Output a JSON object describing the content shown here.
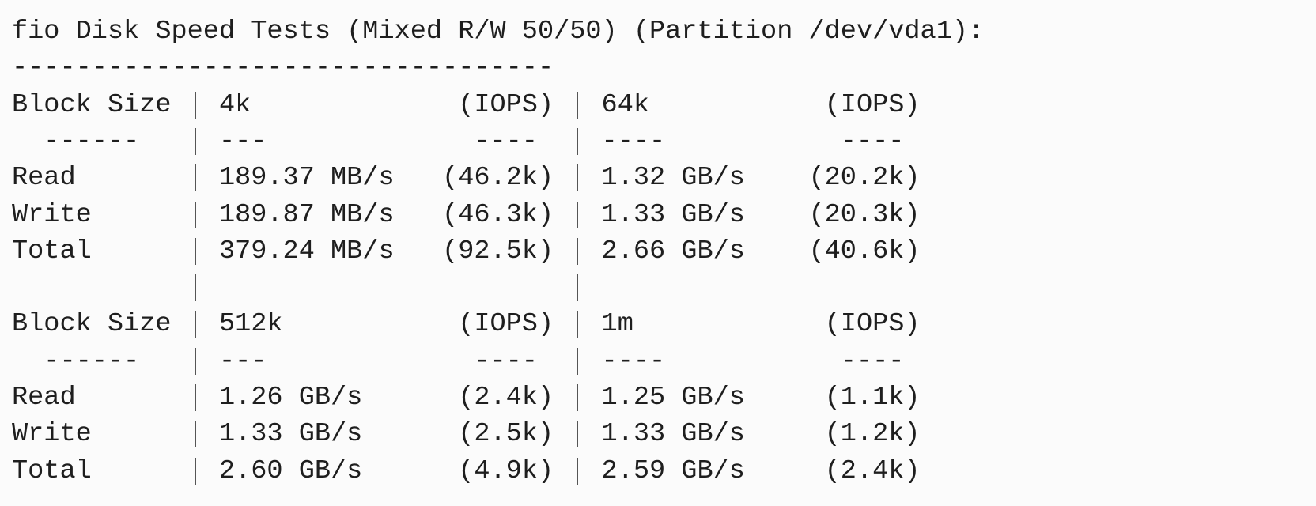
{
  "title": "fio Disk Speed Tests (Mixed R/W 50/50) (Partition /dev/vda1):",
  "separator": "----------------------------------",
  "tables": [
    {
      "header": [
        "Block Size",
        "4k",
        "(IOPS)",
        "64k",
        "(IOPS)"
      ],
      "dashes": [
        "------",
        "---",
        "----",
        "----",
        "----"
      ],
      "rows": [
        [
          "Read",
          "189.37 MB/s",
          "(46.2k)",
          "1.32 GB/s",
          "(20.2k)"
        ],
        [
          "Write",
          "189.87 MB/s",
          "(46.3k)",
          "1.33 GB/s",
          "(20.3k)"
        ],
        [
          "Total",
          "379.24 MB/s",
          "(92.5k)",
          "2.66 GB/s",
          "(40.6k)"
        ]
      ]
    },
    {
      "header": [
        "Block Size",
        "512k",
        "(IOPS)",
        "1m",
        "(IOPS)"
      ],
      "dashes": [
        "------",
        "---",
        "----",
        "----",
        "----"
      ],
      "rows": [
        [
          "Read",
          "1.26 GB/s",
          "(2.4k)",
          "1.25 GB/s",
          "(1.1k)"
        ],
        [
          "Write",
          "1.33 GB/s",
          "(2.5k)",
          "1.33 GB/s",
          "(1.2k)"
        ],
        [
          "Total",
          "2.60 GB/s",
          "(4.9k)",
          "2.59 GB/s",
          "(2.4k)"
        ]
      ]
    }
  ]
}
